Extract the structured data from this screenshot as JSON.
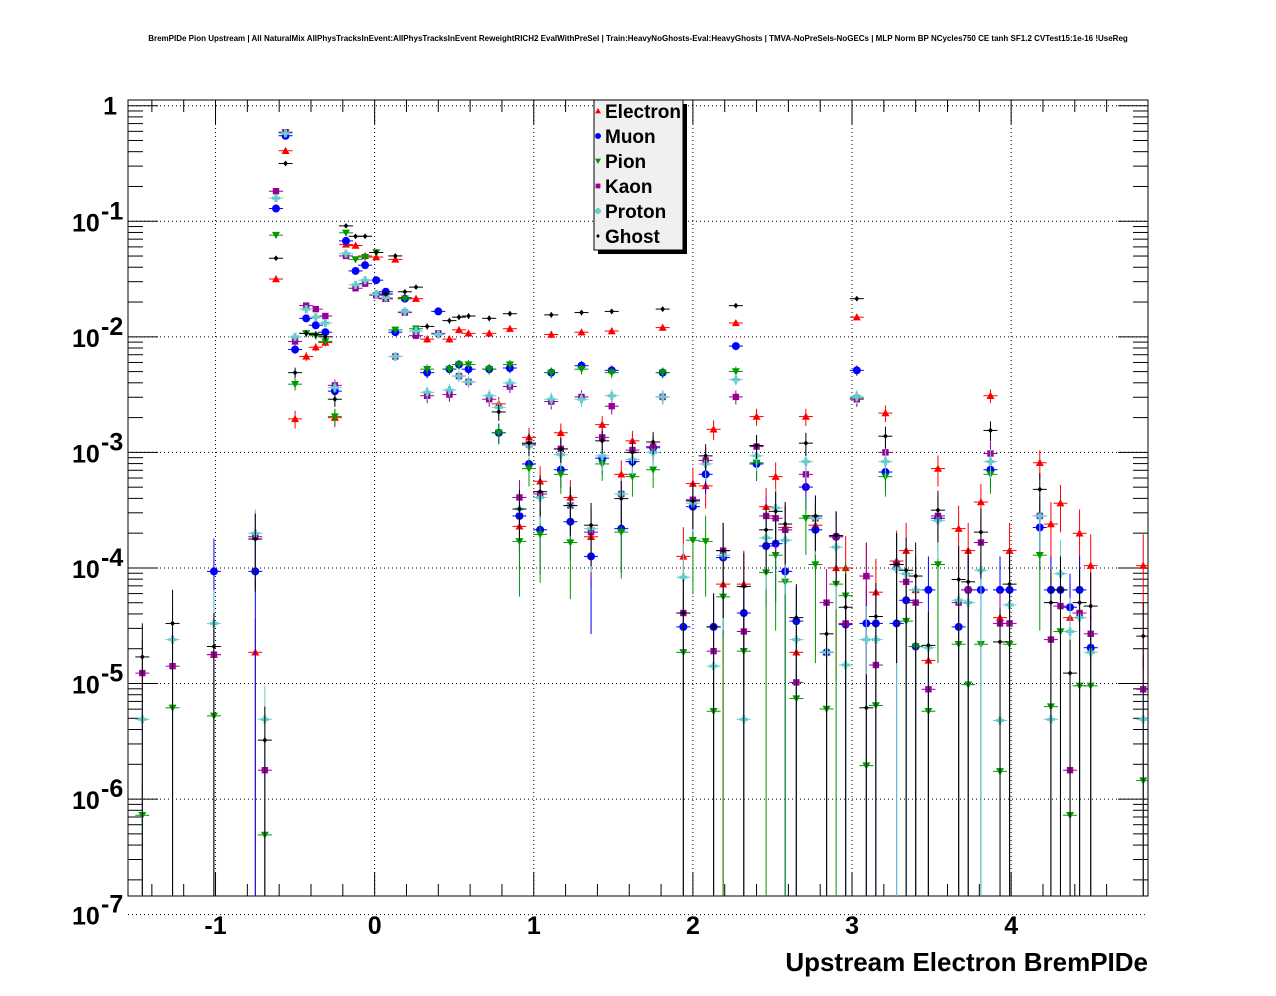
{
  "title": "BremPIDe Pion Upstream | All NaturalMix AllPhysTracksInEvent:AllPhysTracksInEvent ReweightRICH2 EvalWithPreSel | Train:HeavyNoGhosts-Eval:HeavyGhosts | TMVA-NoPreSels-NoGECs | MLP Norm BP NCycles750 CE tanh SF1.2 CVTest15:1e-16 !UseReg",
  "chart_data": {
    "type": "scatter",
    "title": "BremPIDe Pion Upstream | All NaturalMix AllPhysTracksInEvent:AllPhysTracksInEvent ReweightRICH2 EvalWithPreSel | Train:HeavyNoGhosts-Eval:HeavyGhosts | TMVA-NoPreSels-NoGECs | MLP Norm BP NCycles750 CE tanh SF1.2 CVTest15:1e-16 !UseReg",
    "xlabel": "Upstream Electron BremPIDe",
    "ylabel": "",
    "xlim": [
      -1.55,
      4.86
    ],
    "ylim": [
      1.45e-07,
      1.12
    ],
    "yscale": "log",
    "grid": true,
    "legend_position": "top-center",
    "x_ticks": [
      {
        "value": -1,
        "label": "-1"
      },
      {
        "value": 0,
        "label": "0"
      },
      {
        "value": 1,
        "label": "1"
      },
      {
        "value": 2,
        "label": "2"
      },
      {
        "value": 3,
        "label": "3"
      },
      {
        "value": 4,
        "label": "4"
      }
    ],
    "y_ticks": [
      {
        "exp": 0,
        "base": "1",
        "sup": ""
      },
      {
        "exp": -1,
        "base": "10",
        "sup": "-1"
      },
      {
        "exp": -2,
        "base": "10",
        "sup": "-2"
      },
      {
        "exp": -3,
        "base": "10",
        "sup": "-3"
      },
      {
        "exp": -4,
        "base": "10",
        "sup": "-4"
      },
      {
        "exp": -5,
        "base": "10",
        "sup": "-5"
      },
      {
        "exp": -6,
        "base": "10",
        "sup": "-6"
      },
      {
        "exp": -7,
        "base": "10",
        "sup": "-7"
      }
    ],
    "x": [
      -1.46,
      -1.27,
      -1.01,
      -0.75,
      -0.69,
      -0.62,
      -0.56,
      -0.5,
      -0.43,
      -0.37,
      -0.31,
      -0.25,
      -0.18,
      -0.12,
      -0.06,
      0.01,
      0.07,
      0.13,
      0.19,
      0.26,
      0.33,
      0.4,
      0.47,
      0.53,
      0.59,
      0.72,
      0.78,
      0.85,
      0.91,
      0.97,
      1.04,
      1.11,
      1.17,
      1.23,
      1.3,
      1.36,
      1.43,
      1.49,
      1.55,
      1.62,
      1.75,
      1.81,
      1.94,
      2.0,
      2.08,
      2.13,
      2.19,
      2.27,
      2.32,
      2.4,
      2.46,
      2.52,
      2.58,
      2.65,
      2.71,
      2.77,
      2.84,
      2.9,
      2.96,
      3.03,
      3.09,
      3.15,
      3.21,
      3.28,
      3.34,
      3.4,
      3.48,
      3.54,
      3.67,
      3.73,
      3.81,
      3.87,
      3.93,
      3.99,
      4.18,
      4.25,
      4.31,
      4.37,
      4.43,
      4.5,
      4.83
    ],
    "series": [
      {
        "name": "Electron",
        "color": "#ff0000",
        "marker": "triangle-up",
        "log10_y": [
          null,
          null,
          -4.75,
          -4.73,
          null,
          -1.5,
          -0.39,
          -2.71,
          -2.17,
          -2.09,
          -2.05,
          -2.7,
          -1.2,
          -1.21,
          -1.3,
          -1.31,
          -1.67,
          -1.33,
          -1.66,
          -1.67,
          -2.02,
          null,
          -2.02,
          -1.94,
          -1.97,
          -1.97,
          -2.58,
          -1.93,
          -3.64,
          -2.87,
          -3.25,
          -1.98,
          -2.83,
          -3.39,
          -1.96,
          -3.73,
          -2.76,
          -1.95,
          -3.19,
          -2.9,
          null,
          -1.92,
          -3.9,
          -3.27,
          -3.29,
          -2.8,
          -4.14,
          -1.88,
          -4.14,
          -2.69,
          -3.47,
          -3.21,
          -3.65,
          -4.73,
          -2.69,
          -3.63,
          -4.73,
          -4.0,
          -4.0,
          -1.83,
          -4.07,
          -4.21,
          -2.66,
          -3.94,
          -3.85,
          -4.19,
          -4.8,
          -3.14,
          -3.66,
          -3.85,
          -3.43,
          -2.51,
          -4.43,
          -3.85,
          -3.09,
          -3.62,
          -3.44,
          -4.43,
          -3.7,
          -3.98,
          -3.98
        ]
      },
      {
        "name": "Muon",
        "color": "#0000ff",
        "marker": "circle",
        "log10_y": [
          null,
          null,
          -4.03,
          -4.03,
          null,
          -0.89,
          -0.26,
          -2.11,
          -1.84,
          -1.9,
          -1.96,
          -2.47,
          -1.17,
          -1.43,
          -1.38,
          -1.51,
          -1.61,
          -1.96,
          -1.67,
          -1.95,
          -2.31,
          -1.78,
          -2.28,
          -2.24,
          -2.28,
          -2.28,
          -2.83,
          -2.27,
          -3.55,
          -3.1,
          -3.67,
          -2.31,
          -3.15,
          -3.6,
          -2.25,
          -3.9,
          -3.05,
          -2.29,
          -3.66,
          -3.08,
          -2.96,
          -2.31,
          -4.51,
          -3.47,
          -3.19,
          -4.51,
          -3.91,
          -2.08,
          -4.39,
          -3.1,
          -3.81,
          -3.79,
          -4.03,
          -4.46,
          -3.3,
          -3.67,
          -4.73,
          -3.73,
          -4.49,
          -2.29,
          -4.48,
          -4.48,
          -3.17,
          -4.48,
          -4.28,
          -4.68,
          -4.19,
          -3.57,
          -4.51,
          -4.19,
          -4.19,
          -3.15,
          -4.19,
          -4.19,
          -3.65,
          -4.19,
          -4.19,
          -4.34,
          -4.19,
          -4.69,
          null
        ]
      },
      {
        "name": "Pion",
        "color": "#009900",
        "marker": "triangle-down",
        "log10_y": [
          -6.14,
          -5.21,
          -5.28,
          null,
          -6.31,
          -1.12,
          -0.23,
          -2.41,
          -1.97,
          -1.99,
          -2.04,
          -2.69,
          -1.1,
          -1.33,
          -1.31,
          -1.27,
          -1.67,
          -1.94,
          -1.67,
          -1.93,
          -2.28,
          null,
          -2.28,
          -2.24,
          -2.24,
          -2.28,
          -2.83,
          -2.24,
          -3.77,
          -3.14,
          -3.71,
          -2.31,
          -3.19,
          -3.78,
          -2.28,
          null,
          -3.1,
          -2.31,
          -3.69,
          -3.21,
          -3.15,
          -2.31,
          -4.73,
          -3.76,
          -3.77,
          -5.24,
          -4.25,
          -2.3,
          -4.72,
          -3.09,
          -4.04,
          -3.89,
          -4.12,
          -5.13,
          -3.57,
          -3.97,
          -5.22,
          -4.14,
          -4.24,
          -2.53,
          -5.71,
          -5.19,
          -3.21,
          -3.97,
          -4.46,
          -4.68,
          -5.24,
          -3.97,
          -4.66,
          -5.01,
          -4.66,
          -3.19,
          -5.76,
          -4.66,
          -3.89,
          -5.2,
          -4.55,
          -6.14,
          -5.02,
          -5.02,
          -5.84
        ]
      },
      {
        "name": "Kaon",
        "color": "#990099",
        "marker": "square",
        "log10_y": [
          -4.91,
          -4.85,
          -4.75,
          -3.73,
          -5.75,
          -0.74,
          -0.23,
          -2.04,
          -1.73,
          -1.76,
          -1.82,
          -2.42,
          -1.3,
          -1.58,
          -1.54,
          -1.64,
          -1.67,
          -2.17,
          -1.79,
          -1.99,
          -2.51,
          -1.97,
          -2.5,
          -2.34,
          -2.39,
          -2.54,
          null,
          -2.43,
          -3.39,
          -2.93,
          -3.36,
          -2.56,
          -2.97,
          -3.46,
          -2.52,
          -3.69,
          -2.87,
          -2.6,
          -3.36,
          -2.98,
          -2.95,
          -2.52,
          -4.39,
          -3.41,
          -3.07,
          -4.72,
          -3.85,
          -2.52,
          -4.55,
          -2.95,
          -3.55,
          -3.57,
          -3.67,
          -4.99,
          -3.19,
          -3.57,
          -4.3,
          -3.73,
          -4.48,
          -2.54,
          -4.07,
          -4.84,
          -3.0,
          -3.97,
          -4.12,
          -4.3,
          -5.05,
          -3.55,
          -4.3,
          -4.19,
          -3.78,
          -3.01,
          -4.48,
          -4.48,
          -3.55,
          -4.62,
          -4.33,
          -5.75,
          -4.39,
          -4.57,
          -5.05
        ]
      },
      {
        "name": "Proton",
        "color": "#66cccc",
        "marker": "cross",
        "log10_y": [
          -5.31,
          -4.62,
          -4.48,
          -3.7,
          -5.31,
          -0.8,
          -0.24,
          -2.0,
          -1.76,
          -1.83,
          -1.88,
          -2.44,
          -1.28,
          -1.55,
          -1.51,
          -1.63,
          -1.66,
          -2.17,
          -1.78,
          -1.95,
          -2.48,
          -1.98,
          -2.46,
          -2.34,
          -2.39,
          -2.51,
          -2.61,
          -2.4,
          -3.49,
          -2.94,
          -3.39,
          -2.54,
          -3.02,
          -3.46,
          -2.54,
          -3.66,
          -3.03,
          -2.51,
          -3.36,
          -3.06,
          -3.0,
          -2.52,
          -4.08,
          -3.44,
          -3.1,
          -4.85,
          -3.89,
          -2.37,
          -5.31,
          -3.03,
          -3.74,
          -3.48,
          -3.76,
          -4.62,
          -3.08,
          -3.57,
          -4.73,
          -3.82,
          -4.84,
          -2.52,
          -4.62,
          -4.62,
          -3.08,
          -4.01,
          -4.05,
          -4.19,
          -4.69,
          -3.59,
          -4.28,
          -4.3,
          -4.02,
          -3.08,
          -5.32,
          -4.32,
          -3.55,
          -5.31,
          -4.05,
          -4.55,
          -4.43,
          -4.73,
          -5.31
        ]
      },
      {
        "name": "Ghost",
        "color": "#000000",
        "marker": "diamond",
        "log10_y": [
          -4.77,
          -4.48,
          -4.68,
          -3.75,
          -5.49,
          -1.32,
          -0.5,
          -2.31,
          -1.97,
          -1.98,
          -2.0,
          -2.54,
          -1.04,
          -1.13,
          -1.13,
          -1.27,
          -1.63,
          -1.3,
          -1.61,
          -1.57,
          -1.91,
          null,
          -1.86,
          -1.83,
          -1.82,
          -1.84,
          -2.65,
          -1.8,
          -3.49,
          -2.92,
          -3.34,
          -1.81,
          -2.97,
          -3.46,
          -1.79,
          -3.63,
          -2.9,
          -1.78,
          -3.4,
          -3.0,
          -2.91,
          -1.76,
          -4.39,
          -3.42,
          -3.03,
          -4.51,
          -3.85,
          -1.73,
          -4.16,
          -2.94,
          -3.67,
          -3.51,
          -3.62,
          -4.43,
          -2.92,
          -3.55,
          -4.57,
          -3.72,
          -4.34,
          -1.67,
          -5.21,
          -4.42,
          -2.86,
          -3.97,
          -4.02,
          -4.07,
          -4.67,
          -3.5,
          -4.1,
          -4.12,
          -3.69,
          -2.81,
          -4.64,
          -4.14,
          -3.32,
          -4.3,
          -4.19,
          -4.91,
          -4.3,
          -4.33,
          -4.59
        ]
      }
    ]
  }
}
